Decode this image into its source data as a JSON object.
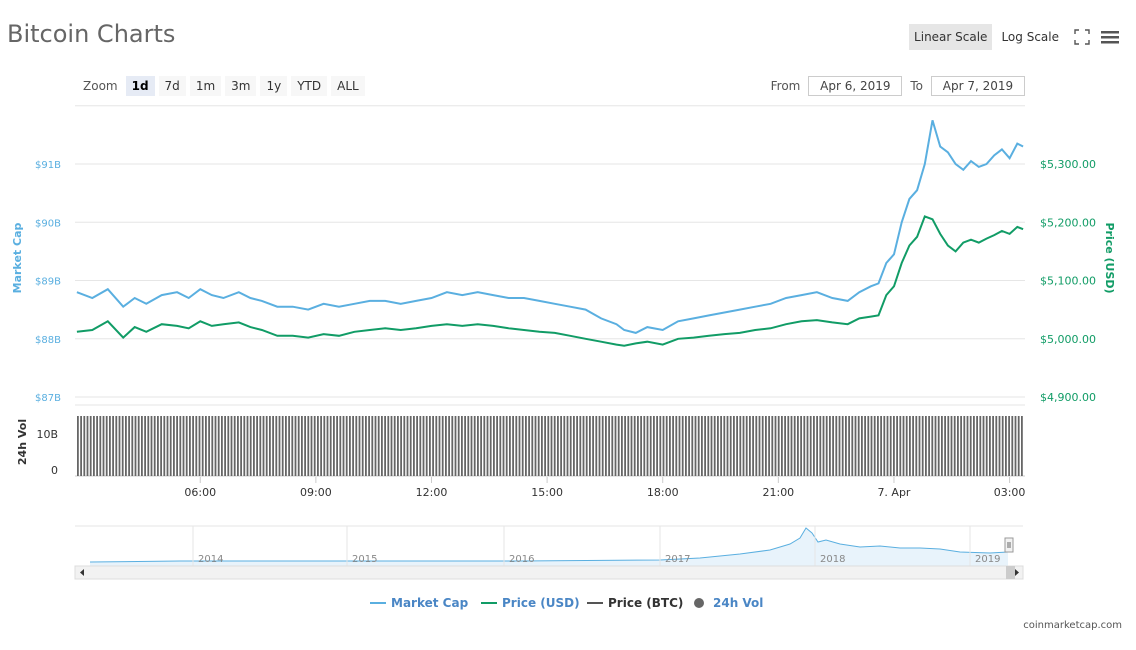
{
  "page": {
    "title": "Bitcoin Charts",
    "footer": "coinmarketcap.com",
    "toolbar": {
      "linear_scale": "Linear Scale",
      "log_scale": "Log Scale"
    },
    "zoom": {
      "label": "Zoom",
      "options": [
        "1d",
        "7d",
        "1m",
        "3m",
        "1y",
        "YTD",
        "ALL"
      ],
      "selected": "1d"
    },
    "range": {
      "from_label": "From",
      "from_value": "Apr 6, 2019",
      "to_label": "To",
      "to_value": "Apr 7, 2019"
    }
  },
  "colors": {
    "market_cap": "#5aafe0",
    "price_usd": "#119c66",
    "price_btc": "#555555",
    "volume": "#666666",
    "grid": "#e6e6e6"
  },
  "chart_data": {
    "type": "line",
    "x_ticks": [
      "06:00",
      "09:00",
      "12:00",
      "15:00",
      "18:00",
      "21:00",
      "7. Apr",
      "03:00"
    ],
    "x_range_hours": [
      2.75,
      27.4
    ],
    "left_axis": {
      "label": "Market Cap",
      "ticks": [
        "$91B",
        "$90B",
        "$89B",
        "$88B",
        "$87B"
      ]
    },
    "right_axis": {
      "label": "Price (USD)",
      "ticks": [
        "$5,300.00",
        "$5,200.00",
        "$5,100.00",
        "$5,000.00",
        "$4,900.00"
      ],
      "range": [
        4900,
        5400
      ]
    },
    "volume_axis": {
      "label": "24h Vol",
      "ticks": [
        "10B",
        "0"
      ]
    },
    "series": [
      {
        "name": "Market Cap",
        "x": [
          2.8,
          3.2,
          3.6,
          4.0,
          4.3,
          4.6,
          5.0,
          5.4,
          5.7,
          6.0,
          6.3,
          6.6,
          7.0,
          7.3,
          7.6,
          8.0,
          8.4,
          8.8,
          9.2,
          9.6,
          10.0,
          10.4,
          10.8,
          11.2,
          11.6,
          12.0,
          12.4,
          12.8,
          13.2,
          13.6,
          14.0,
          14.4,
          14.8,
          15.2,
          15.6,
          16.0,
          16.4,
          16.8,
          17.0,
          17.3,
          17.6,
          18.0,
          18.4,
          18.8,
          19.2,
          19.6,
          20.0,
          20.4,
          20.8,
          21.2,
          21.6,
          22.0,
          22.4,
          22.8,
          23.1,
          23.4,
          23.6,
          23.8,
          24.0,
          24.2,
          24.4,
          24.6,
          24.8,
          25.0,
          25.2,
          25.4,
          25.6,
          25.8,
          26.0,
          26.2,
          26.4,
          26.6,
          26.8,
          27.0,
          27.2,
          27.35
        ],
        "values": [
          88.8,
          88.7,
          88.85,
          88.55,
          88.7,
          88.6,
          88.75,
          88.8,
          88.7,
          88.85,
          88.75,
          88.7,
          88.8,
          88.7,
          88.65,
          88.55,
          88.55,
          88.5,
          88.6,
          88.55,
          88.6,
          88.65,
          88.65,
          88.6,
          88.65,
          88.7,
          88.8,
          88.75,
          88.8,
          88.75,
          88.7,
          88.7,
          88.65,
          88.6,
          88.55,
          88.5,
          88.35,
          88.25,
          88.15,
          88.1,
          88.2,
          88.15,
          88.3,
          88.35,
          88.4,
          88.45,
          88.5,
          88.55,
          88.6,
          88.7,
          88.75,
          88.8,
          88.7,
          88.65,
          88.8,
          88.9,
          88.95,
          89.3,
          89.45,
          90.0,
          90.4,
          90.55,
          91.0,
          91.75,
          91.3,
          91.2,
          91.0,
          90.9,
          91.05,
          90.95,
          91.0,
          91.15,
          91.25,
          91.1,
          91.35,
          91.3
        ],
        "unit": "B USD"
      },
      {
        "name": "Price (USD)",
        "x": [
          2.8,
          3.2,
          3.6,
          4.0,
          4.3,
          4.6,
          5.0,
          5.4,
          5.7,
          6.0,
          6.3,
          6.6,
          7.0,
          7.3,
          7.6,
          8.0,
          8.4,
          8.8,
          9.2,
          9.6,
          10.0,
          10.4,
          10.8,
          11.2,
          11.6,
          12.0,
          12.4,
          12.8,
          13.2,
          13.6,
          14.0,
          14.4,
          14.8,
          15.2,
          15.6,
          16.0,
          16.4,
          16.8,
          17.0,
          17.3,
          17.6,
          18.0,
          18.4,
          18.8,
          19.2,
          19.6,
          20.0,
          20.4,
          20.8,
          21.2,
          21.6,
          22.0,
          22.4,
          22.8,
          23.1,
          23.4,
          23.6,
          23.8,
          24.0,
          24.2,
          24.4,
          24.6,
          24.8,
          25.0,
          25.2,
          25.4,
          25.6,
          25.8,
          26.0,
          26.2,
          26.4,
          26.6,
          26.8,
          27.0,
          27.2,
          27.35
        ],
        "values": [
          5012,
          5015,
          5030,
          5002,
          5020,
          5012,
          5025,
          5022,
          5018,
          5030,
          5022,
          5025,
          5028,
          5020,
          5015,
          5005,
          5005,
          5002,
          5008,
          5005,
          5012,
          5015,
          5018,
          5015,
          5018,
          5022,
          5025,
          5022,
          5025,
          5022,
          5018,
          5015,
          5012,
          5010,
          5005,
          5000,
          4995,
          4990,
          4988,
          4992,
          4995,
          4990,
          5000,
          5002,
          5005,
          5008,
          5010,
          5015,
          5018,
          5025,
          5030,
          5032,
          5028,
          5025,
          5035,
          5038,
          5040,
          5075,
          5090,
          5130,
          5160,
          5175,
          5210,
          5205,
          5180,
          5160,
          5150,
          5165,
          5170,
          5165,
          5172,
          5178,
          5185,
          5180,
          5192,
          5188
        ],
        "unit": "USD"
      },
      {
        "name": "Price (BTC)",
        "x": [],
        "values": []
      },
      {
        "name": "24h Vol",
        "x": [
          2.75,
          27.4
        ],
        "values": [
          12.8,
          12.8
        ],
        "unit": "B USD"
      }
    ],
    "navigator": {
      "years": [
        "2014",
        "2015",
        "2016",
        "2017",
        "2018",
        "2019"
      ]
    },
    "legend": [
      "Market Cap",
      "Price (USD)",
      "Price (BTC)",
      "24h Vol"
    ],
    "legend_position": "bottom-center",
    "grid": true
  }
}
